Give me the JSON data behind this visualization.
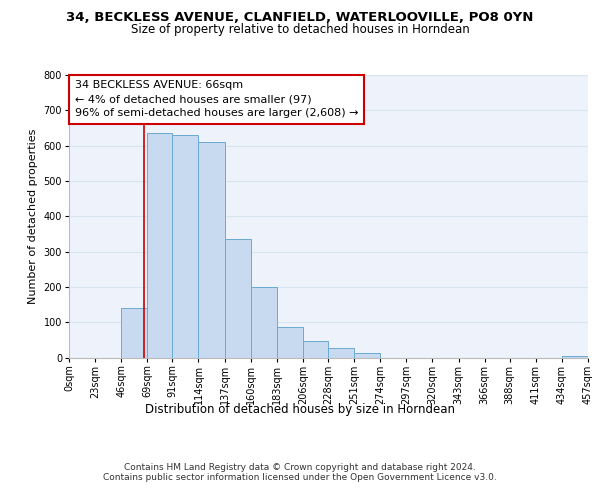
{
  "title": "34, BECKLESS AVENUE, CLANFIELD, WATERLOOVILLE, PO8 0YN",
  "subtitle": "Size of property relative to detached houses in Horndean",
  "xlabel": "Distribution of detached houses by size in Horndean",
  "ylabel": "Number of detached properties",
  "bar_color": "#c8daf0",
  "bar_edge_color": "#6aaad4",
  "background_color": "#ffffff",
  "grid_color": "#d8e4f0",
  "property_line_x": 66,
  "property_line_color": "#cc0000",
  "annotation_line1": "34 BECKLESS AVENUE: 66sqm",
  "annotation_line2": "← 4% of detached houses are smaller (97)",
  "annotation_line3": "96% of semi-detached houses are larger (2,608) →",
  "annotation_box_color": "#ffffff",
  "annotation_box_edge": "#cc0000",
  "bin_edges": [
    0,
    23,
    46,
    69,
    91,
    114,
    137,
    160,
    183,
    206,
    228,
    251,
    274,
    297,
    320,
    343,
    366,
    388,
    411,
    434,
    457
  ],
  "bin_labels": [
    "0sqm",
    "23sqm",
    "46sqm",
    "69sqm",
    "91sqm",
    "114sqm",
    "137sqm",
    "160sqm",
    "183sqm",
    "206sqm",
    "228sqm",
    "251sqm",
    "274sqm",
    "297sqm",
    "320sqm",
    "343sqm",
    "366sqm",
    "388sqm",
    "411sqm",
    "434sqm",
    "457sqm"
  ],
  "counts": [
    0,
    0,
    140,
    635,
    630,
    610,
    335,
    200,
    85,
    47,
    28,
    12,
    0,
    0,
    0,
    0,
    0,
    0,
    0,
    5
  ],
  "ylim": [
    0,
    800
  ],
  "yticks": [
    0,
    100,
    200,
    300,
    400,
    500,
    600,
    700,
    800
  ],
  "footer_line1": "Contains HM Land Registry data © Crown copyright and database right 2024.",
  "footer_line2": "Contains public sector information licensed under the Open Government Licence v3.0.",
  "title_fontsize": 9.5,
  "subtitle_fontsize": 8.5,
  "xlabel_fontsize": 8.5,
  "ylabel_fontsize": 8,
  "tick_fontsize": 7,
  "annotation_fontsize": 8,
  "footer_fontsize": 6.5
}
